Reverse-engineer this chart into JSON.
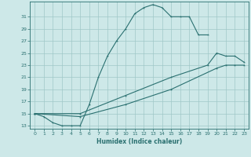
{
  "xlabel": "Humidex (Indice chaleur)",
  "ylabel": "",
  "bg_color": "#cde8e8",
  "grid_color": "#a0c8c8",
  "line_color": "#2a7070",
  "xlim": [
    -0.5,
    23.5
  ],
  "ylim": [
    12.5,
    33.5
  ],
  "xticks": [
    0,
    1,
    2,
    3,
    4,
    5,
    6,
    7,
    8,
    9,
    10,
    11,
    12,
    13,
    14,
    15,
    16,
    17,
    18,
    19,
    20,
    21,
    22,
    23
  ],
  "yticks": [
    13,
    15,
    17,
    19,
    21,
    23,
    25,
    27,
    29,
    31
  ],
  "curve1_x": [
    0,
    1,
    2,
    3,
    4,
    5,
    6,
    7,
    8,
    9,
    10,
    11,
    12,
    13,
    14,
    15,
    16,
    17,
    18,
    19
  ],
  "curve1_y": [
    15,
    14.5,
    13.5,
    13,
    13,
    13,
    16.5,
    21,
    24.5,
    27,
    29,
    31.5,
    32.5,
    33,
    32.5,
    31,
    31,
    31,
    28,
    28
  ],
  "curve2_x": [
    0,
    5,
    10,
    15,
    19,
    20,
    21,
    22,
    23
  ],
  "curve2_y": [
    15,
    15,
    18,
    21,
    23,
    25,
    24.5,
    24.5,
    23.5
  ],
  "curve3_x": [
    0,
    5,
    10,
    15,
    20,
    21,
    22,
    23
  ],
  "curve3_y": [
    15,
    14.5,
    16.5,
    19,
    22.5,
    23,
    23,
    23
  ]
}
